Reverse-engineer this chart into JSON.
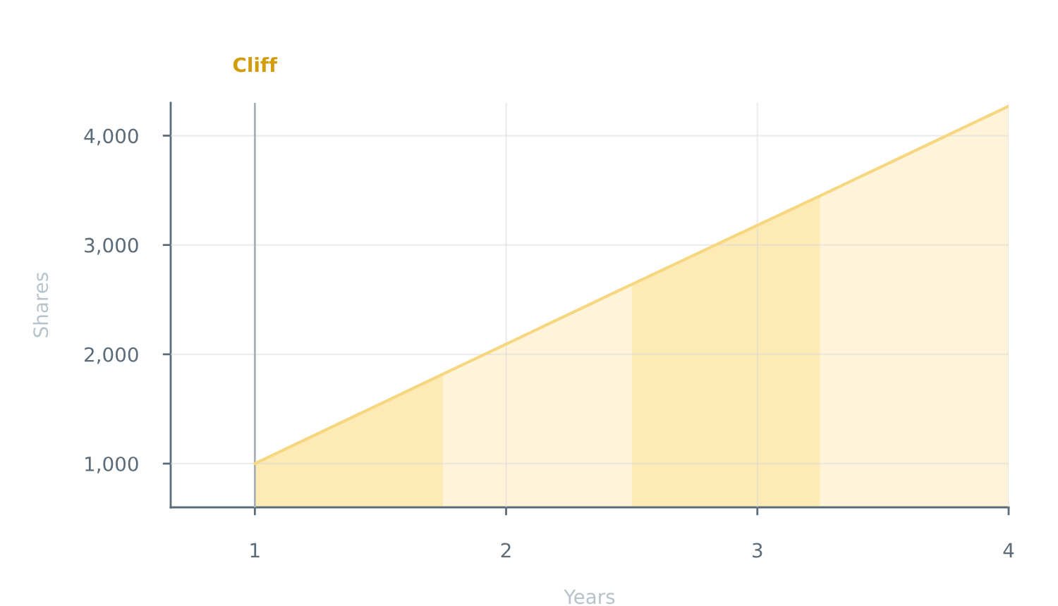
{
  "chart_data": {
    "type": "area",
    "xlabel": "Years",
    "ylabel": "Shares",
    "xlim": [
      0.665,
      4
    ],
    "ylim": [
      600,
      4300
    ],
    "xticks": [
      1,
      2,
      3,
      4
    ],
    "yticks": [
      {
        "value": 1000,
        "label": "1,000"
      },
      {
        "value": 2000,
        "label": "2,000"
      },
      {
        "value": 3000,
        "label": "3,000"
      },
      {
        "value": 4000,
        "label": "4,000"
      }
    ],
    "grid": true,
    "line_style": "solid",
    "ref_lines": [
      {
        "axis": "x",
        "value": 1,
        "label": "Cliff",
        "color": "#a7afb7"
      }
    ],
    "series": [
      {
        "color": "#feeab5",
        "x": [
          1,
          1.75
        ],
        "values": [
          1000,
          1820
        ]
      },
      {
        "color": "#fff4da",
        "x": [
          1.75,
          2.5
        ],
        "values": [
          1820,
          2640
        ]
      },
      {
        "color": "#feeab5",
        "x": [
          2.5,
          3.25
        ],
        "values": [
          2640,
          3450
        ]
      },
      {
        "color": "#fff4da",
        "x": [
          3.25,
          4
        ],
        "values": [
          3450,
          4270
        ]
      },
      {
        "type": "line",
        "color": "#f6d77f",
        "x": [
          1,
          1.75,
          2.5,
          3.25,
          4
        ],
        "values": [
          1000,
          1820,
          2640,
          3450,
          4270
        ]
      }
    ]
  }
}
